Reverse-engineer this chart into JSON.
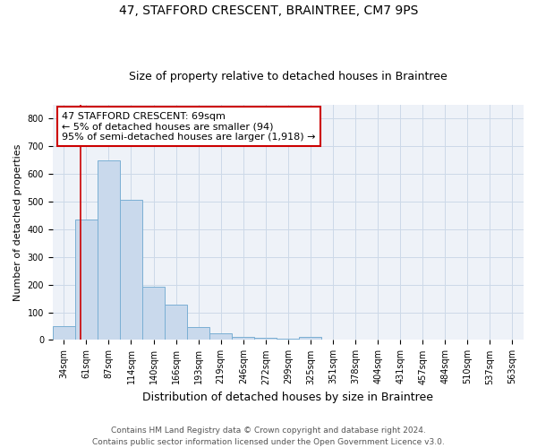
{
  "title": "47, STAFFORD CRESCENT, BRAINTREE, CM7 9PS",
  "subtitle": "Size of property relative to detached houses in Braintree",
  "xlabel": "Distribution of detached houses by size in Braintree",
  "ylabel": "Number of detached properties",
  "categories": [
    "34sqm",
    "61sqm",
    "87sqm",
    "114sqm",
    "140sqm",
    "166sqm",
    "193sqm",
    "219sqm",
    "246sqm",
    "272sqm",
    "299sqm",
    "325sqm",
    "351sqm",
    "378sqm",
    "404sqm",
    "431sqm",
    "457sqm",
    "484sqm",
    "510sqm",
    "537sqm",
    "563sqm"
  ],
  "values": [
    50,
    435,
    650,
    505,
    193,
    127,
    48,
    25,
    10,
    8,
    5,
    10,
    0,
    0,
    0,
    0,
    0,
    0,
    0,
    0,
    0
  ],
  "bar_color": "#c9d9ec",
  "bar_edgecolor": "#7aafd4",
  "bar_linewidth": 0.7,
  "red_line_color": "#cc0000",
  "red_line_x": 0.73,
  "ylim": [
    0,
    850
  ],
  "yticks": [
    0,
    100,
    200,
    300,
    400,
    500,
    600,
    700,
    800
  ],
  "annotation_line1": "47 STAFFORD CRESCENT: 69sqm",
  "annotation_line2": "← 5% of detached houses are smaller (94)",
  "annotation_line3": "95% of semi-detached houses are larger (1,918) →",
  "annotation_box_color": "#ffffff",
  "annotation_border_color": "#cc0000",
  "annotation_fontsize": 8,
  "footer_line1": "Contains HM Land Registry data © Crown copyright and database right 2024.",
  "footer_line2": "Contains public sector information licensed under the Open Government Licence v3.0.",
  "title_fontsize": 10,
  "subtitle_fontsize": 9,
  "xlabel_fontsize": 9,
  "ylabel_fontsize": 8,
  "tick_fontsize": 7,
  "footer_fontsize": 6.5,
  "grid_color": "#ccd9e8",
  "background_color": "#eef2f8"
}
